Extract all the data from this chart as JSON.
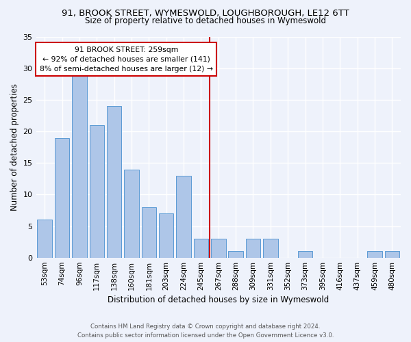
{
  "title_line1": "91, BROOK STREET, WYMESWOLD, LOUGHBOROUGH, LE12 6TT",
  "title_line2": "Size of property relative to detached houses in Wymeswold",
  "xlabel": "Distribution of detached houses by size in Wymeswold",
  "ylabel": "Number of detached properties",
  "categories": [
    "53sqm",
    "74sqm",
    "96sqm",
    "117sqm",
    "138sqm",
    "160sqm",
    "181sqm",
    "203sqm",
    "224sqm",
    "245sqm",
    "267sqm",
    "288sqm",
    "309sqm",
    "331sqm",
    "352sqm",
    "373sqm",
    "395sqm",
    "416sqm",
    "437sqm",
    "459sqm",
    "480sqm"
  ],
  "values": [
    6,
    19,
    29,
    21,
    24,
    14,
    8,
    7,
    13,
    3,
    3,
    1,
    3,
    3,
    0,
    1,
    0,
    0,
    0,
    1,
    1
  ],
  "bar_color": "#aec6e8",
  "bar_edge_color": "#5b9bd5",
  "property_line_x": 9.5,
  "annotation_title": "91 BROOK STREET: 259sqm",
  "annotation_line2": "← 92% of detached houses are smaller (141)",
  "annotation_line3": "8% of semi-detached houses are larger (12) →",
  "vline_color": "#cc0000",
  "annotation_box_color": "#cc0000",
  "background_color": "#eef2fb",
  "grid_color": "#ffffff",
  "footer_line1": "Contains HM Land Registry data © Crown copyright and database right 2024.",
  "footer_line2": "Contains public sector information licensed under the Open Government Licence v3.0.",
  "ylim": [
    0,
    35
  ],
  "yticks": [
    0,
    5,
    10,
    15,
    20,
    25,
    30,
    35
  ]
}
